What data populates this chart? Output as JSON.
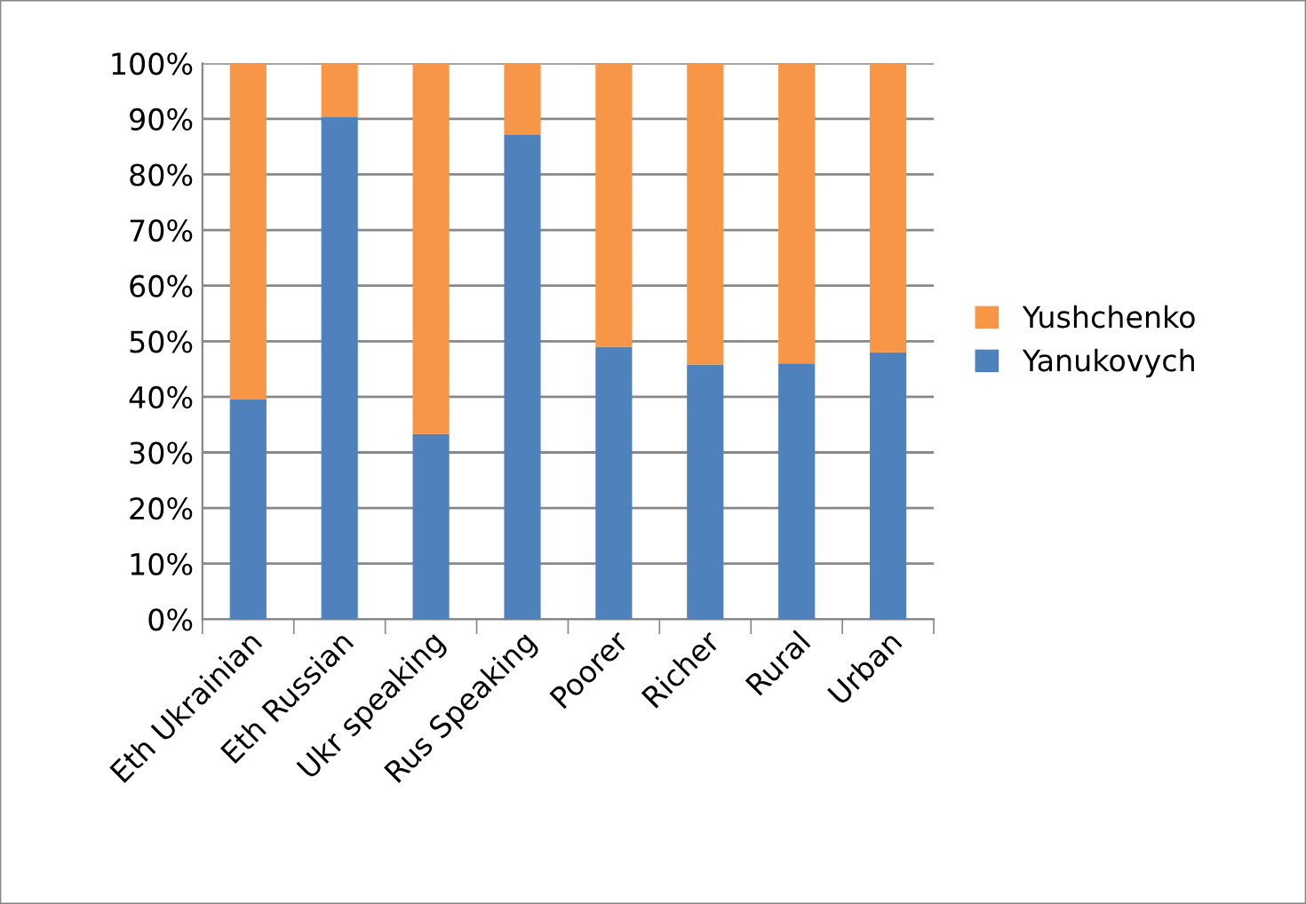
{
  "chart_data": {
    "type": "bar",
    "stacked": true,
    "categories": [
      "Eth Ukrainian",
      "Eth Russian",
      "Ukr speaking",
      "Rus Speaking",
      "Poorer",
      "Richer",
      "Rural",
      "Urban"
    ],
    "series": [
      {
        "name": "Yanukovych",
        "color": "#4f81bd",
        "values": [
          39.5,
          90.3,
          33.3,
          87.1,
          49,
          45.8,
          46,
          48
        ]
      },
      {
        "name": "Yushchenko",
        "color": "#f79646",
        "values": [
          60.5,
          9.7,
          66.7,
          12.9,
          51,
          54.2,
          54,
          52
        ]
      }
    ],
    "ylim": [
      0,
      100
    ],
    "yticks": [
      {
        "value": 0,
        "label": "0%"
      },
      {
        "value": 10,
        "label": "10%"
      },
      {
        "value": 20,
        "label": "20%"
      },
      {
        "value": 30,
        "label": "30%"
      },
      {
        "value": 40,
        "label": "40%"
      },
      {
        "value": 50,
        "label": "50%"
      },
      {
        "value": 60,
        "label": "60%"
      },
      {
        "value": 70,
        "label": "70%"
      },
      {
        "value": 80,
        "label": "80%"
      },
      {
        "value": 90,
        "label": "90%"
      },
      {
        "value": 100,
        "label": "100%"
      }
    ],
    "grid": "y",
    "legend": "right"
  }
}
